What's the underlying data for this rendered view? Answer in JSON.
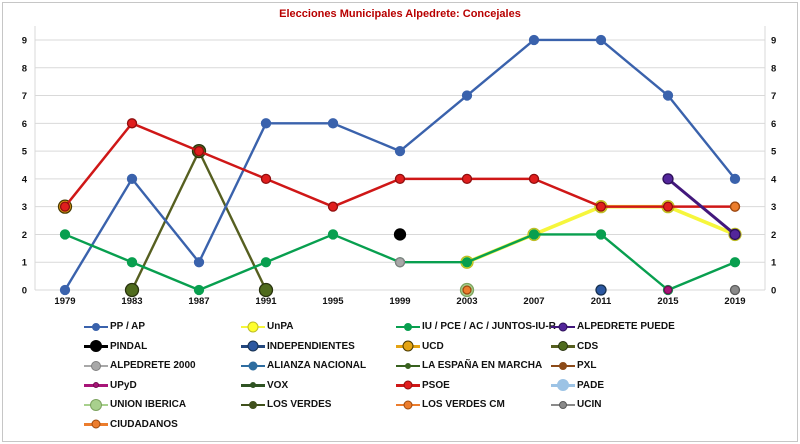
{
  "figure": {
    "title_color": "#b80000",
    "background": "#ffffff",
    "border_color": "#c6c6c6",
    "gridline_color": "#d9d9d9",
    "tick_color": "#111111"
  },
  "chart_data": {
    "type": "line",
    "title": "Elecciones Municipales Alpedrete: Concejales",
    "xlabel": "",
    "ylabel": "",
    "x": [
      1979,
      1983,
      1987,
      1991,
      1995,
      1999,
      2003,
      2007,
      2011,
      2015,
      2019
    ],
    "ylim": [
      0,
      9
    ],
    "yticks": [
      0,
      1,
      2,
      3,
      4,
      5,
      6,
      7,
      8,
      9
    ],
    "grid": true,
    "legend_position": "bottom",
    "y_axis_labels_both_sides": true,
    "series": [
      {
        "name": "PP / AP",
        "color": "#3a62ac",
        "points": {
          "1979": 0,
          "1983": 4,
          "1987": 1,
          "1991": 6,
          "1995": 6,
          "1999": 5,
          "2003": 7,
          "2007": 9,
          "2011": 9,
          "2015": 7,
          "2019": 4
        },
        "z": 5,
        "r": 4.5,
        "lw": 2.4,
        "legend_dot": 8
      },
      {
        "name": "UnPA",
        "color": "#f6f63c",
        "marker_fill": "#ffff2e",
        "marker_stroke": "#bdbd24",
        "points": {
          "2003": 1,
          "2007": 2,
          "2011": 3,
          "2015": 3,
          "2019": 2
        },
        "z": 3,
        "r": 6,
        "lw": 3.6,
        "legend_dot": 11
      },
      {
        "name": "IU / PCE / AC / JUNTOS-IU-R",
        "color": "#089f4f",
        "points": {
          "1979": 2,
          "1983": 1,
          "1987": 0,
          "1991": 1,
          "1995": 2,
          "1999": 1,
          "2003": 1,
          "2007": 2,
          "2011": 2,
          "2015": 0,
          "2019": 1
        },
        "z": 7,
        "r": 4.5,
        "lw": 2.4,
        "legend_dot": 8
      },
      {
        "name": "ALPEDRETE PUEDE",
        "color": "#42187c",
        "marker_fill": "#53269b",
        "marker_stroke": "#2c0f58",
        "points": {
          "2015": 4,
          "2019": 2
        },
        "z": 8,
        "r": 5,
        "lw": 3,
        "legend_dot": 9
      },
      {
        "name": "PINDAL",
        "color": "#000000",
        "points": {
          "1999": 2
        },
        "z": 9,
        "r": 5.5,
        "legend_dot": 12
      },
      {
        "name": "INDEPENDIENTES",
        "color": "#24487e",
        "marker_fill": "#2b57a0",
        "marker_stroke": "#16304f",
        "points": {
          "2011": 0
        },
        "z": 9,
        "r": 5,
        "legend_dot": 11
      },
      {
        "name": "UCD",
        "color": "#e4a313",
        "marker_stroke": "#4a3a00",
        "points": {
          "1979": 3
        },
        "z": 1,
        "r": 6.5,
        "legend_dot": 11
      },
      {
        "name": "CDS",
        "color": "#565f20",
        "marker_fill": "#4f6b1d",
        "marker_stroke": "#28330e",
        "points": {
          "1983": 0,
          "1987": 5,
          "1991": 0
        },
        "z": 2,
        "r": 6.5,
        "lw": 2.4,
        "legend_dot": 10
      },
      {
        "name": "ALPEDRETE 2000",
        "color": "#a8a8a8",
        "marker_stroke": "#7f7f7f",
        "points": {
          "1999": 1
        },
        "z": 9,
        "r": 4.5,
        "legend_dot": 10
      },
      {
        "name": "ALIANZA NACIONAL",
        "color": "#2e6da0",
        "points": {},
        "legend_dot": 9
      },
      {
        "name": "LA ESPAÑA EN MARCHA",
        "color": "#38611f",
        "points": {},
        "legend_dot": 6
      },
      {
        "name": "PXL",
        "color": "#8c4a18",
        "points": {},
        "legend_dot": 8
      },
      {
        "name": "UPyD",
        "color": "#a81578",
        "marker_stroke": "#6e0f4e",
        "points": {
          "2015": 0
        },
        "z": 10,
        "r": 3.8,
        "legend_dot": 6
      },
      {
        "name": "VOX",
        "color": "#2f5323",
        "points": {},
        "legend_dot": 6
      },
      {
        "name": "PSOE",
        "color": "#cf1717",
        "marker_fill": "#e01e1e",
        "marker_stroke": "#8f0e0e",
        "points": {
          "1979": 3,
          "1983": 6,
          "1987": 5,
          "1991": 4,
          "1995": 3,
          "1999": 4,
          "2003": 4,
          "2007": 4,
          "2011": 3,
          "2015": 3,
          "2019": 3
        },
        "z": 6,
        "r": 4.5,
        "lw": 2.5,
        "legend_dot": 9
      },
      {
        "name": "PADE",
        "color": "#9cc3e5",
        "points": {},
        "legend_dot": 12
      },
      {
        "name": "UNION IBERICA",
        "color": "#a8d08d",
        "marker_stroke": "#7ca35f",
        "points": {
          "2003": 0
        },
        "z": 4,
        "r": 6.5,
        "legend_dot": 12
      },
      {
        "name": "LOS VERDES",
        "color": "#40511c",
        "points": {},
        "legend_dot": 8
      },
      {
        "name": "LOS VERDES CM",
        "color": "#ec7d2d",
        "marker_stroke": "#9c4a0f",
        "points": {
          "2003": 0
        },
        "z": 10,
        "r": 4,
        "legend_dot": 9
      },
      {
        "name": "UCIN",
        "color": "#8a8a8a",
        "marker_stroke": "#5a5a5a",
        "points": {
          "2019": 0
        },
        "z": 10,
        "r": 4.5,
        "legend_dot": 8
      },
      {
        "name": "CIUDADANOS",
        "color": "#ec7d2d",
        "marker_stroke": "#9c4a0f",
        "points": {
          "2019": 3
        },
        "z": 11,
        "r": 4.5,
        "legend_dot": 9
      }
    ]
  }
}
